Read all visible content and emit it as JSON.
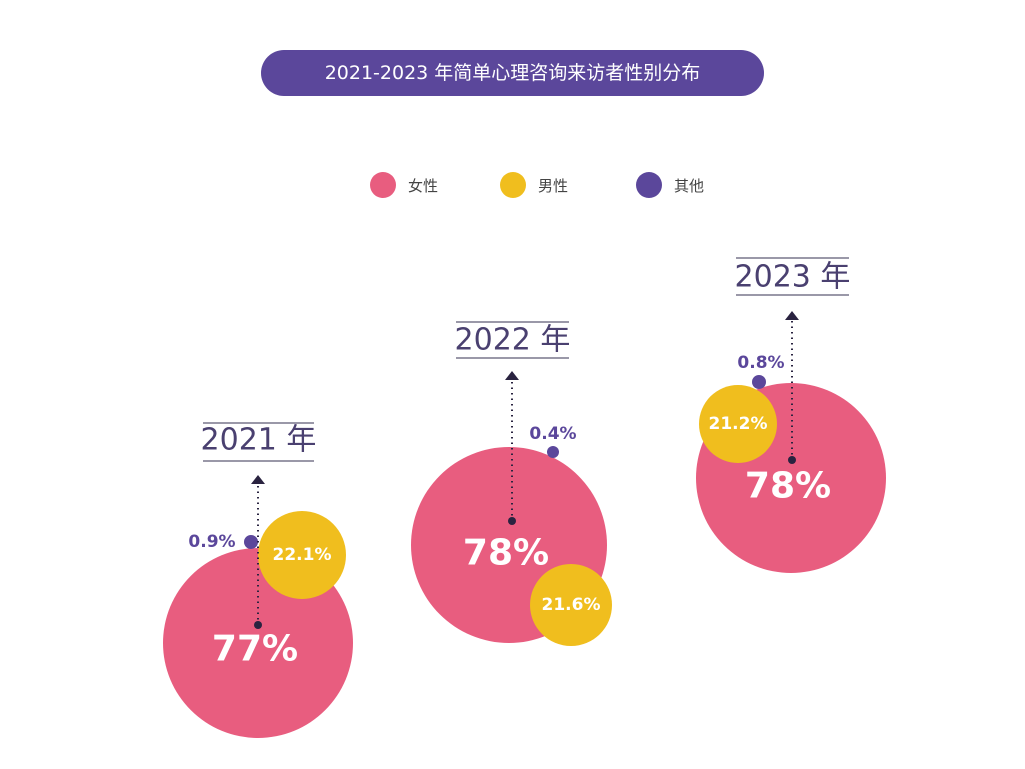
{
  "chart_data": {
    "type": "bubble",
    "title": "2021-2023 年简单心理咨询来访者性别分布",
    "legend": [
      {
        "name": "女性",
        "color": "#e85d7f"
      },
      {
        "name": "男性",
        "color": "#f0be1e"
      },
      {
        "name": "其他",
        "color": "#5b479b"
      }
    ],
    "legend_position": "top",
    "years": [
      {
        "label": "2021 年",
        "female": 77,
        "male": 22.1,
        "other": 0.9,
        "female_label": "77%",
        "male_label": "22.1%",
        "other_label": "0.9%"
      },
      {
        "label": "2022 年",
        "female": 78,
        "male": 21.6,
        "other": 0.4,
        "female_label": "78%",
        "male_label": "21.6%",
        "other_label": "0.4%"
      },
      {
        "label": "2023 年",
        "female": 78,
        "male": 21.2,
        "other": 0.8,
        "female_label": "78%",
        "male_label": "21.2%",
        "other_label": "0.8%"
      }
    ]
  }
}
